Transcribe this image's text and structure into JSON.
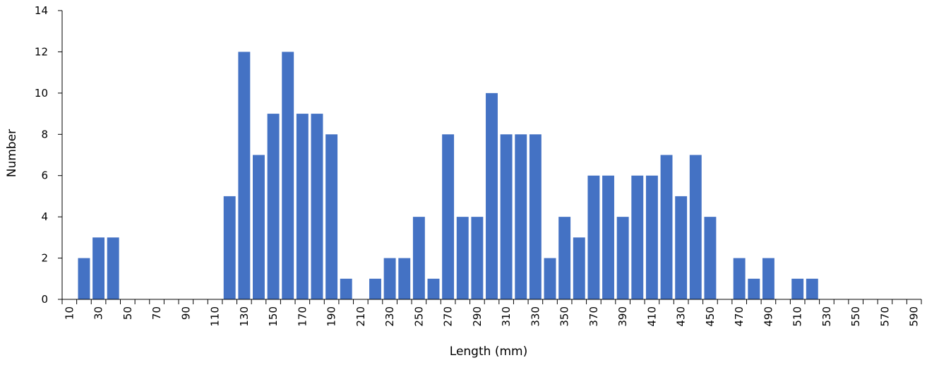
{
  "chart_data": {
    "type": "bar",
    "xlabel": "Length (mm)",
    "ylabel": "Number",
    "ylim": [
      0,
      14
    ],
    "yticks": [
      0,
      2,
      4,
      6,
      8,
      10,
      12,
      14
    ],
    "categories": [
      10,
      20,
      30,
      40,
      50,
      60,
      70,
      80,
      90,
      100,
      110,
      120,
      130,
      140,
      150,
      160,
      170,
      180,
      190,
      200,
      210,
      220,
      230,
      240,
      250,
      260,
      270,
      280,
      290,
      300,
      310,
      320,
      330,
      340,
      350,
      360,
      370,
      380,
      390,
      400,
      410,
      420,
      430,
      440,
      450,
      460,
      470,
      480,
      490,
      500,
      510,
      520,
      530,
      540,
      550,
      560,
      570,
      580,
      590
    ],
    "x_tick_labels": [
      "10",
      "30",
      "50",
      "70",
      "90",
      "110",
      "130",
      "150",
      "170",
      "190",
      "210",
      "230",
      "250",
      "270",
      "290",
      "310",
      "330",
      "350",
      "370",
      "390",
      "410",
      "430",
      "450",
      "470",
      "490",
      "510",
      "530",
      "550",
      "570",
      "590"
    ],
    "values": [
      0,
      2,
      3,
      3,
      0,
      0,
      0,
      0,
      0,
      0,
      0,
      5,
      12,
      7,
      9,
      12,
      9,
      9,
      8,
      1,
      0,
      1,
      2,
      2,
      4,
      1,
      8,
      4,
      4,
      10,
      8,
      8,
      8,
      2,
      4,
      3,
      6,
      6,
      4,
      6,
      6,
      7,
      5,
      7,
      4,
      0,
      2,
      1,
      2,
      0,
      1,
      1,
      0,
      0,
      0,
      0,
      0,
      0,
      0
    ],
    "bar_color": "#4472C4",
    "grid": false,
    "legend": "none"
  }
}
